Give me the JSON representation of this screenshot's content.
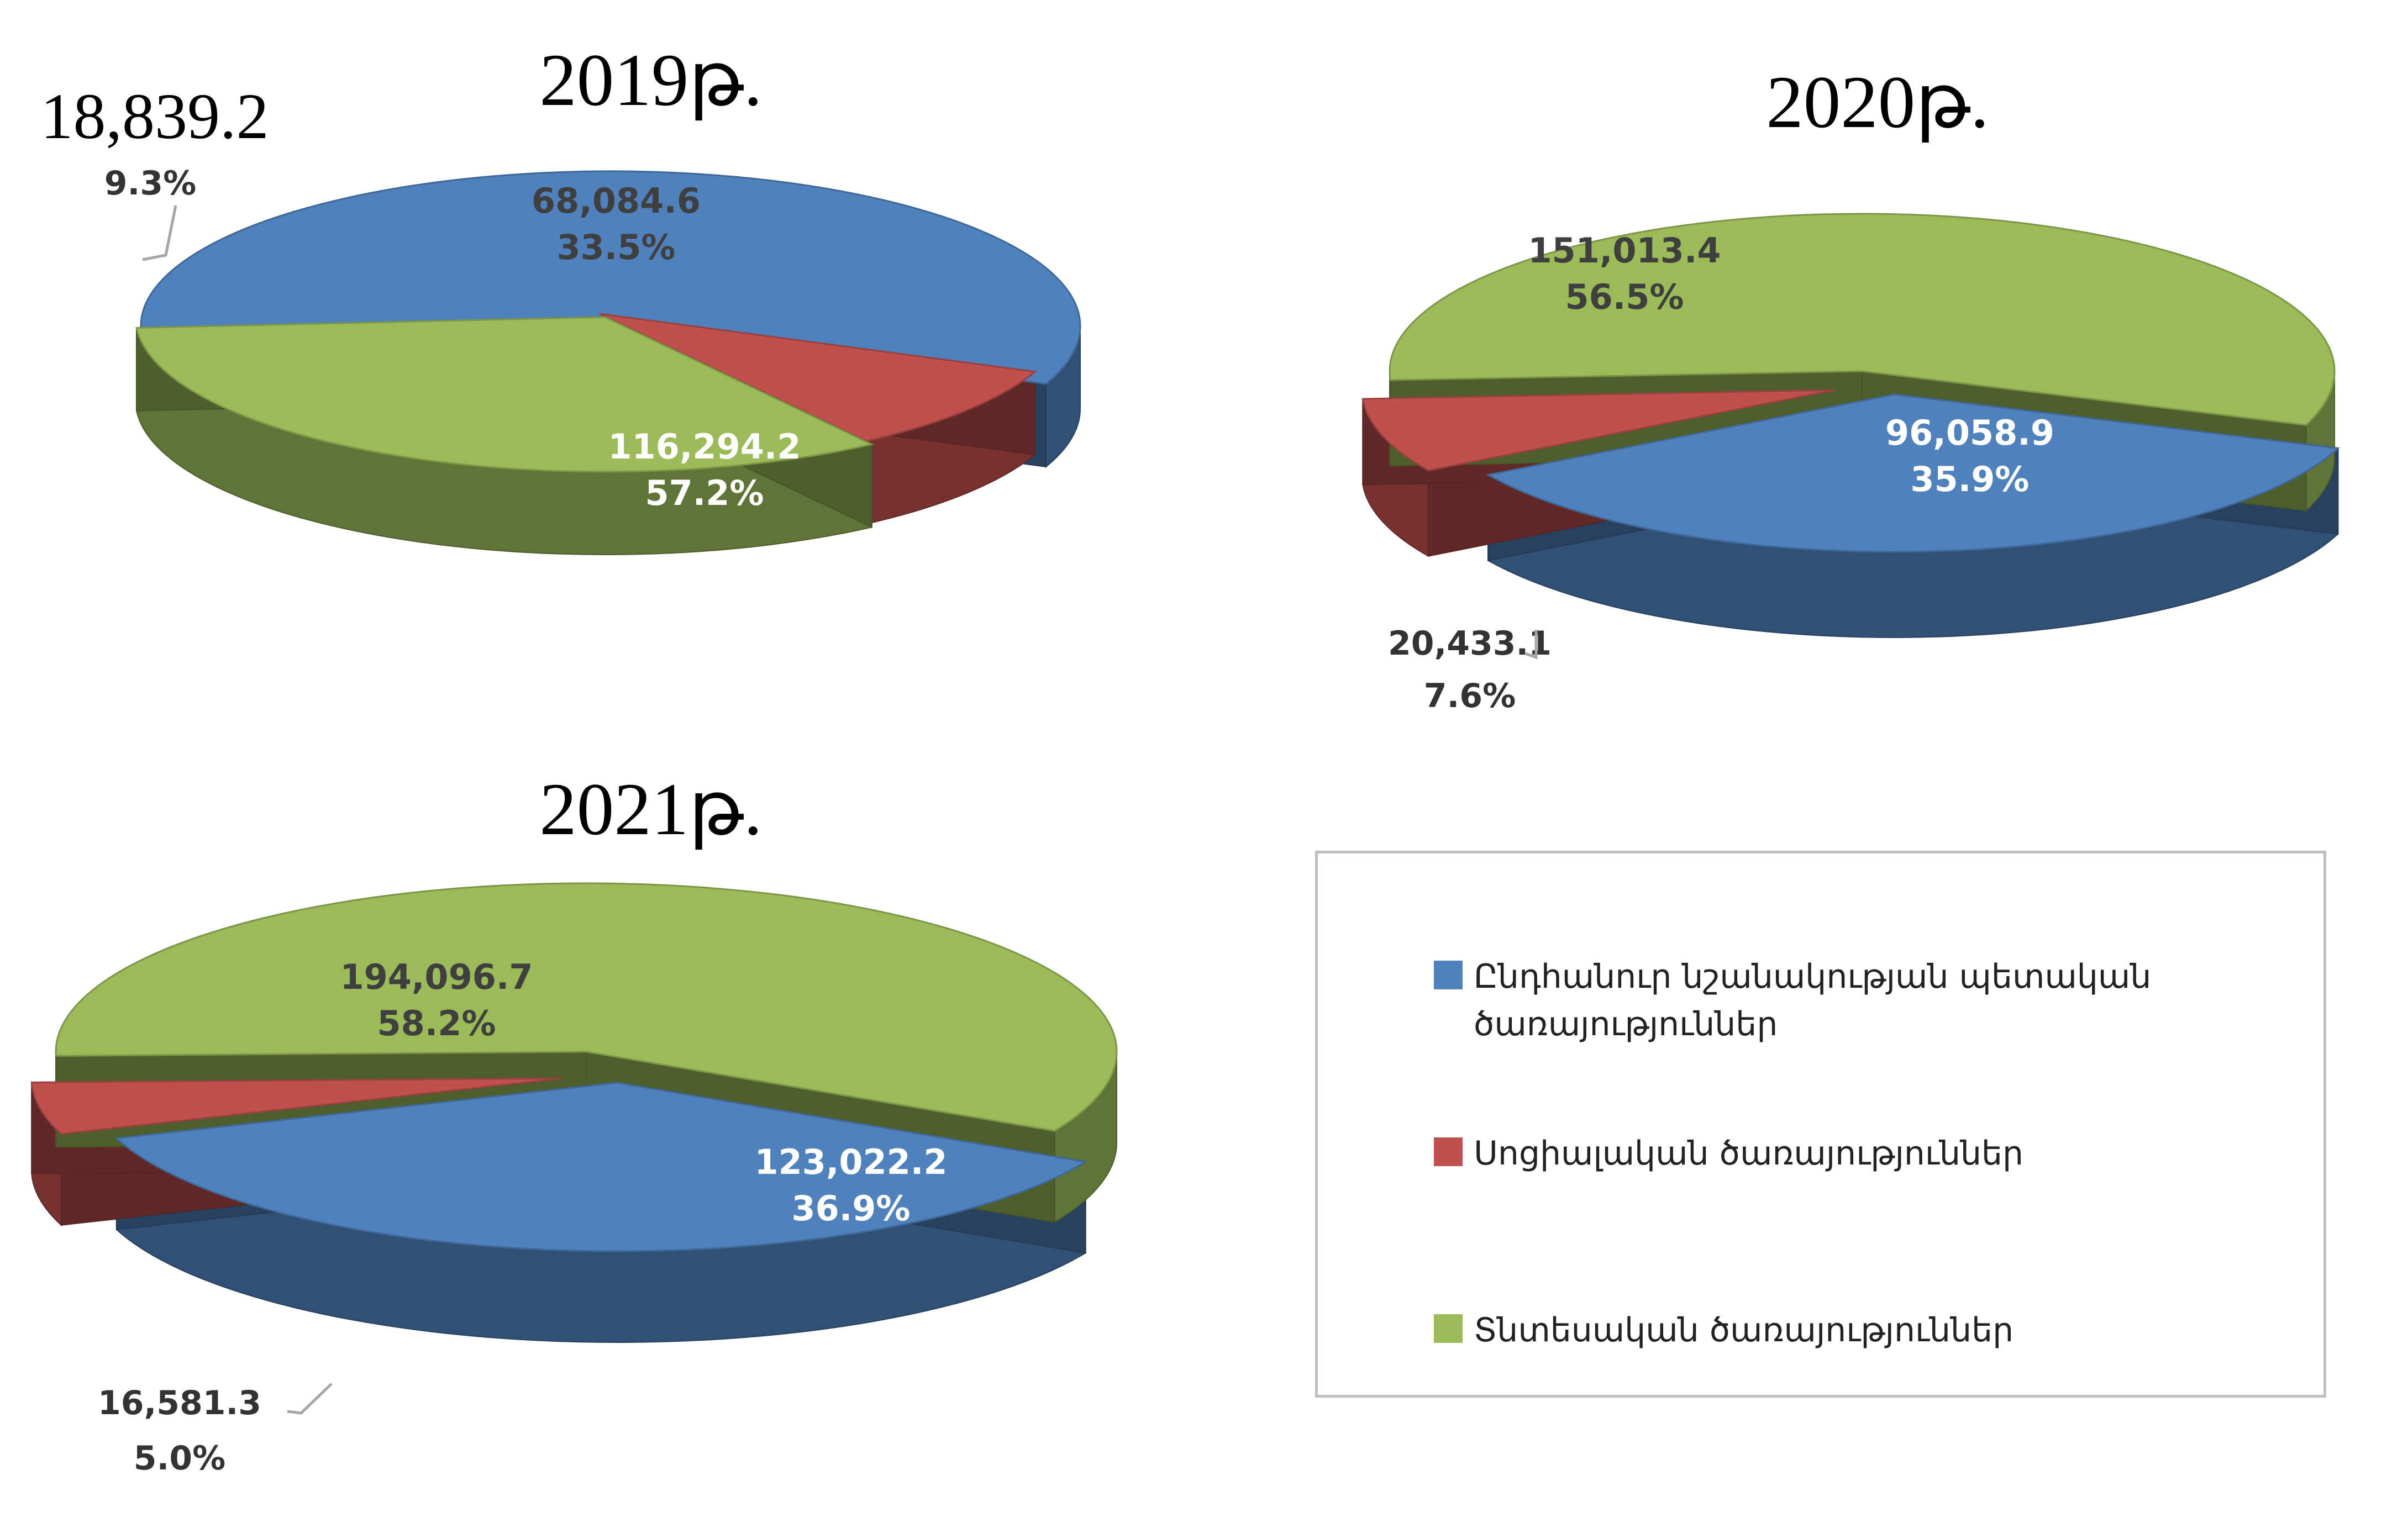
{
  "colors": {
    "blue": "#4f81bd",
    "red": "#c0504d",
    "green": "#9bbb59",
    "inner_dark_text": "#3f3f3f",
    "inner_light_text": "#ffffff"
  },
  "legend": {
    "items": [
      {
        "label": "Ընդհանուր նշանակության պետական ծառայություններ",
        "color_key": "blue"
      },
      {
        "label": "Սոցիալական ծառայություններ",
        "color_key": "red"
      },
      {
        "label": "Տնտեսական ծառայություններ",
        "color_key": "green"
      }
    ]
  },
  "chart_data": [
    {
      "type": "pie",
      "title": "2019թ.",
      "style": "3d-exploded",
      "slices": [
        {
          "category": "Ընդհանուր նշանակության պետական ծառայություններ",
          "value": 116294.2,
          "percent": 57.2,
          "value_label": "116,294.2",
          "percent_label": "57.2%",
          "color_key": "blue"
        },
        {
          "category": "Սոցիալական ծառայություններ",
          "value": 18839.2,
          "percent": 9.3,
          "value_label": "18,839.2",
          "percent_label": "9.3%",
          "color_key": "red"
        },
        {
          "category": "Տնտեսական ծառայություններ",
          "value": 68084.6,
          "percent": 33.5,
          "value_label": "68,084.6",
          "percent_label": "33.5%",
          "color_key": "green"
        }
      ]
    },
    {
      "type": "pie",
      "title": "2020թ.",
      "style": "3d-exploded",
      "slices": [
        {
          "category": "Ընդհանուր նշանակության պետական ծառայություններ",
          "value": 96058.9,
          "percent": 35.9,
          "value_label": "96,058.9",
          "percent_label": "35.9%",
          "color_key": "blue"
        },
        {
          "category": "Սոցիալական ծառայություններ",
          "value": 20433.1,
          "percent": 7.6,
          "value_label": "20,433.1",
          "percent_label": "7.6%",
          "color_key": "red"
        },
        {
          "category": "Տնտեսական ծառայություններ",
          "value": 151013.4,
          "percent": 56.5,
          "value_label": "151,013.4",
          "percent_label": "56.5%",
          "color_key": "green"
        }
      ]
    },
    {
      "type": "pie",
      "title": "2021թ.",
      "style": "3d-exploded",
      "slices": [
        {
          "category": "Ընդհանուր նշանակության պետական ծառայություններ",
          "value": 123022.2,
          "percent": 36.9,
          "value_label": "123,022.2",
          "percent_label": "36.9%",
          "color_key": "blue"
        },
        {
          "category": "Սոցիալական ծառայություններ",
          "value": 16581.3,
          "percent": 5.0,
          "value_label": "16,581.3",
          "percent_label": "5.0%",
          "color_key": "red"
        },
        {
          "category": "Տնտեսական ծառայություններ",
          "value": 194096.7,
          "percent": 58.2,
          "value_label": "194,096.7",
          "percent_label": "58.2%",
          "color_key": "green"
        }
      ]
    }
  ]
}
